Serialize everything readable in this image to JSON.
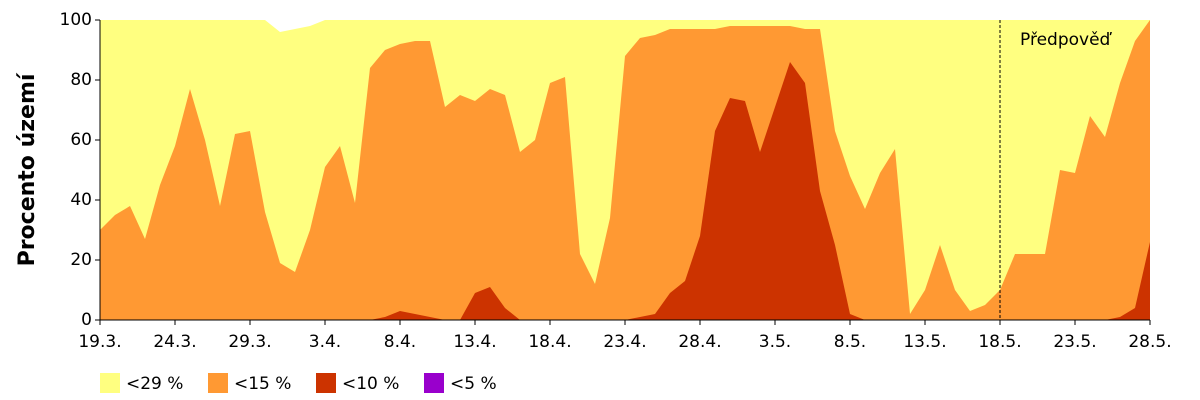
{
  "chart_data": {
    "type": "area",
    "ylabel": "Procento území",
    "categories": [
      "19.3.",
      null,
      null,
      null,
      null,
      "24.3.",
      null,
      null,
      null,
      null,
      "29.3.",
      null,
      null,
      null,
      null,
      "3.4.",
      null,
      null,
      null,
      null,
      "8.4.",
      null,
      null,
      null,
      null,
      "13.4.",
      null,
      null,
      null,
      null,
      "18.4.",
      null,
      null,
      null,
      null,
      "23.4.",
      null,
      null,
      null,
      null,
      "28.4.",
      null,
      null,
      null,
      null,
      "3.5.",
      null,
      null,
      null,
      null,
      "8.5.",
      null,
      null,
      null,
      null,
      "13.5.",
      null,
      null,
      null,
      null,
      "18.5.",
      null,
      null,
      null,
      null,
      "23.5.",
      null,
      null,
      null,
      null,
      "28.5."
    ],
    "ylim": [
      0,
      100
    ],
    "yticks": [
      0,
      20,
      40,
      60,
      80,
      100
    ],
    "annotation": {
      "text": "Předpověď",
      "at": "18.5."
    },
    "series": [
      {
        "name": "<29 %",
        "color": "#ffff80",
        "values": [
          100,
          100,
          100,
          100,
          100,
          100,
          100,
          100,
          100,
          100,
          100,
          100,
          96,
          97,
          98,
          100,
          100,
          100,
          100,
          100,
          100,
          100,
          100,
          100,
          100,
          100,
          100,
          100,
          100,
          100,
          100,
          100,
          100,
          100,
          100,
          100,
          100,
          100,
          100,
          100,
          100,
          100,
          100,
          100,
          100,
          100,
          100,
          100,
          100,
          100,
          100,
          100,
          100,
          100,
          100,
          100,
          100,
          100,
          100,
          100,
          100,
          100,
          100,
          100,
          100,
          100,
          100,
          100,
          100,
          100,
          100
        ]
      },
      {
        "name": "<15 %",
        "color": "#ff9933",
        "values": [
          30,
          35,
          38,
          27,
          45,
          58,
          77,
          60,
          38,
          62,
          63,
          36,
          19,
          16,
          30,
          51,
          58,
          39,
          84,
          90,
          92,
          93,
          93,
          71,
          75,
          73,
          77,
          75,
          56,
          60,
          79,
          81,
          22,
          12,
          34,
          88,
          94,
          95,
          97,
          97,
          97,
          97,
          98,
          98,
          98,
          98,
          98,
          97,
          97,
          63,
          48,
          37,
          49,
          57,
          2,
          10,
          25,
          10,
          3,
          5,
          10,
          22,
          22,
          22,
          50,
          49,
          68,
          61,
          79,
          93,
          100
        ]
      },
      {
        "name": "<10 %",
        "color": "#cc3300",
        "values": [
          0,
          0,
          0,
          0,
          0,
          0,
          0,
          0,
          0,
          0,
          0,
          0,
          0,
          0,
          0,
          0,
          0,
          0,
          0,
          1,
          3,
          2,
          1,
          0,
          0,
          9,
          11,
          4,
          0,
          0,
          0,
          0,
          0,
          0,
          0,
          0,
          1,
          2,
          9,
          13,
          28,
          63,
          74,
          73,
          56,
          71,
          86,
          79,
          43,
          25,
          2,
          0,
          0,
          0,
          0,
          0,
          0,
          0,
          0,
          0,
          0,
          0,
          0,
          0,
          0,
          0,
          0,
          0,
          1,
          4,
          26
        ]
      },
      {
        "name": "<5 %",
        "color": "#9900cc",
        "values": [
          0,
          0,
          0,
          0,
          0,
          0,
          0,
          0,
          0,
          0,
          0,
          0,
          0,
          0,
          0,
          0,
          0,
          0,
          0,
          0,
          0,
          0,
          0,
          0,
          0,
          0,
          0,
          0,
          0,
          0,
          0,
          0,
          0,
          0,
          0,
          0,
          0,
          0,
          0,
          0,
          0,
          0,
          0,
          0,
          0,
          0,
          0,
          0,
          0,
          0,
          0,
          0,
          0,
          0,
          0,
          0,
          0,
          0,
          0,
          0,
          0,
          0,
          0,
          0,
          0,
          0,
          0,
          0,
          0,
          0,
          0
        ]
      }
    ]
  }
}
